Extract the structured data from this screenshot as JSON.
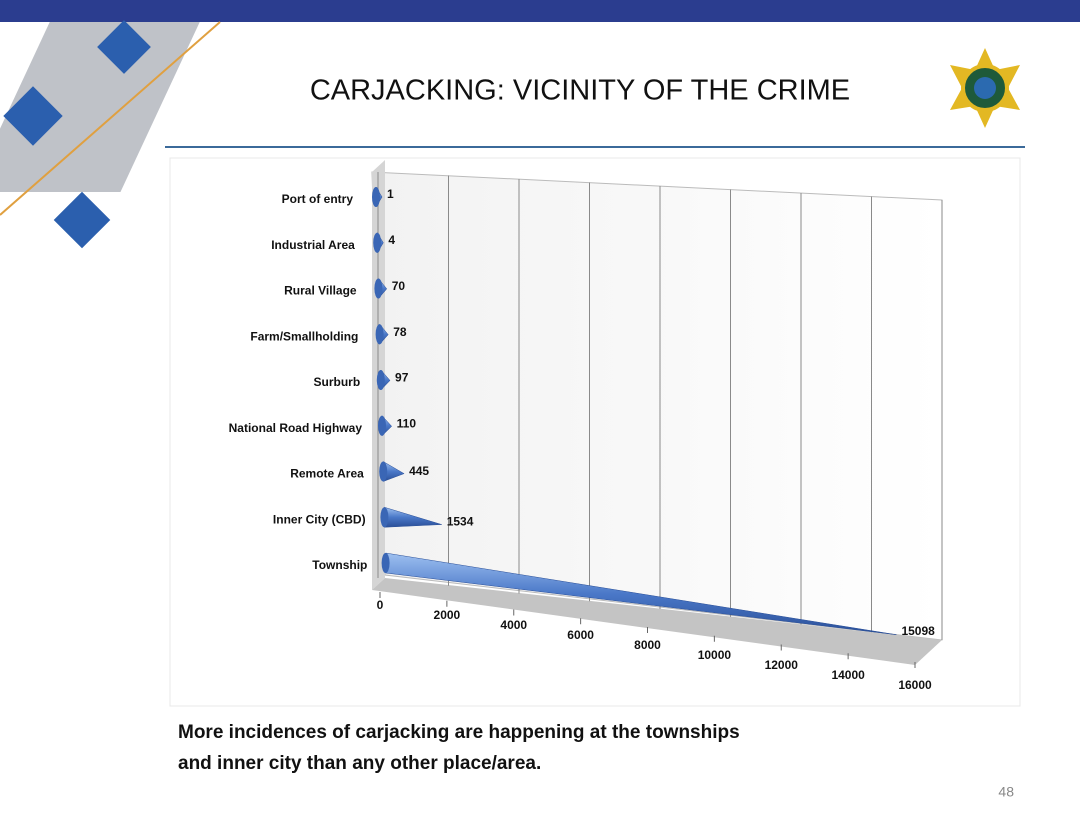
{
  "chart_data": {
    "type": "bar",
    "title": "CARJACKING: VICINITY OF THE CRIME",
    "categories": [
      "Port of entry",
      "Industrial Area",
      "Rural Village",
      "Farm/Smallholding",
      "Surburb",
      "National Road Highway",
      "Remote Area",
      "Inner City (CBD)",
      "Township"
    ],
    "values": [
      1,
      4,
      70,
      78,
      97,
      110,
      445,
      1534,
      15098
    ],
    "color": "#4a78c8",
    "xlim": [
      0,
      16000
    ],
    "xticks": [
      0,
      2000,
      4000,
      6000,
      8000,
      10000,
      12000,
      14000,
      16000
    ],
    "grid": true
  },
  "caption": [
    "More incidences of carjacking are happening at the townships",
    "and inner city than any other place/area."
  ],
  "page_number": "48"
}
